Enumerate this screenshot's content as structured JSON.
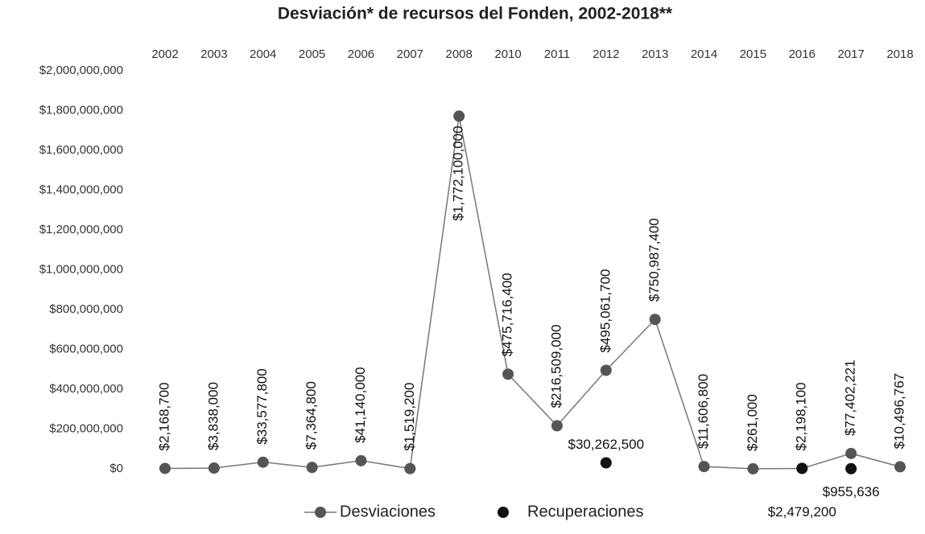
{
  "chart_data": {
    "type": "line",
    "title": "Desviación* de recursos del Fonden, 2002-2018**",
    "categories": [
      "2002",
      "2003",
      "2004",
      "2005",
      "2006",
      "2007",
      "2008",
      "2010",
      "2011",
      "2012",
      "2013",
      "2014",
      "2015",
      "2016",
      "2017",
      "2018"
    ],
    "series": [
      {
        "name": "Desviaciones",
        "color": "#555555",
        "values": [
          2168700,
          3838000,
          33577800,
          7364800,
          41140000,
          1519200,
          1772100000,
          475716400,
          216509000,
          495061700,
          750987400,
          11606800,
          261000,
          2198100,
          77402221,
          10496767
        ],
        "value_labels": [
          "$2,168,700",
          "$3,838,000",
          "$33,577,800",
          "$7,364,800",
          "$41,140,000",
          "$1,519,200",
          "$1,772,100,000",
          "$475,716,400",
          "$216,509,000",
          "$495,061,700",
          "$750,987,400",
          "$11,606,800",
          "$261,000",
          "$2,198,100",
          "$77,402,221",
          "$10,496,767"
        ]
      },
      {
        "name": "Recuperaciones",
        "color": "#111111",
        "values": [
          null,
          null,
          null,
          null,
          null,
          null,
          null,
          null,
          null,
          30262500,
          null,
          null,
          null,
          2479200,
          955636,
          null
        ],
        "value_labels": [
          null,
          null,
          null,
          null,
          null,
          null,
          null,
          null,
          null,
          "$30,262,500",
          null,
          null,
          null,
          "$2,479,200",
          "$955,636",
          null
        ]
      }
    ],
    "ylim": [
      0,
      2000000000
    ],
    "yticks": [
      {
        "value": 0,
        "label": "$0"
      },
      {
        "value": 200000000,
        "label": "$200,000,000"
      },
      {
        "value": 400000000,
        "label": "$400,000,000"
      },
      {
        "value": 600000000,
        "label": "$600,000,000"
      },
      {
        "value": 800000000,
        "label": "$800,000,000"
      },
      {
        "value": 1000000000,
        "label": "$1,000,000,000"
      },
      {
        "value": 1200000000,
        "label": "$1,200,000,000"
      },
      {
        "value": 1400000000,
        "label": "$1,400,000,000"
      },
      {
        "value": 1600000000,
        "label": "$1,600,000,000"
      },
      {
        "value": 1800000000,
        "label": "$1,800,000,000"
      },
      {
        "value": 2000000000,
        "label": "$2,000,000,000"
      }
    ]
  }
}
